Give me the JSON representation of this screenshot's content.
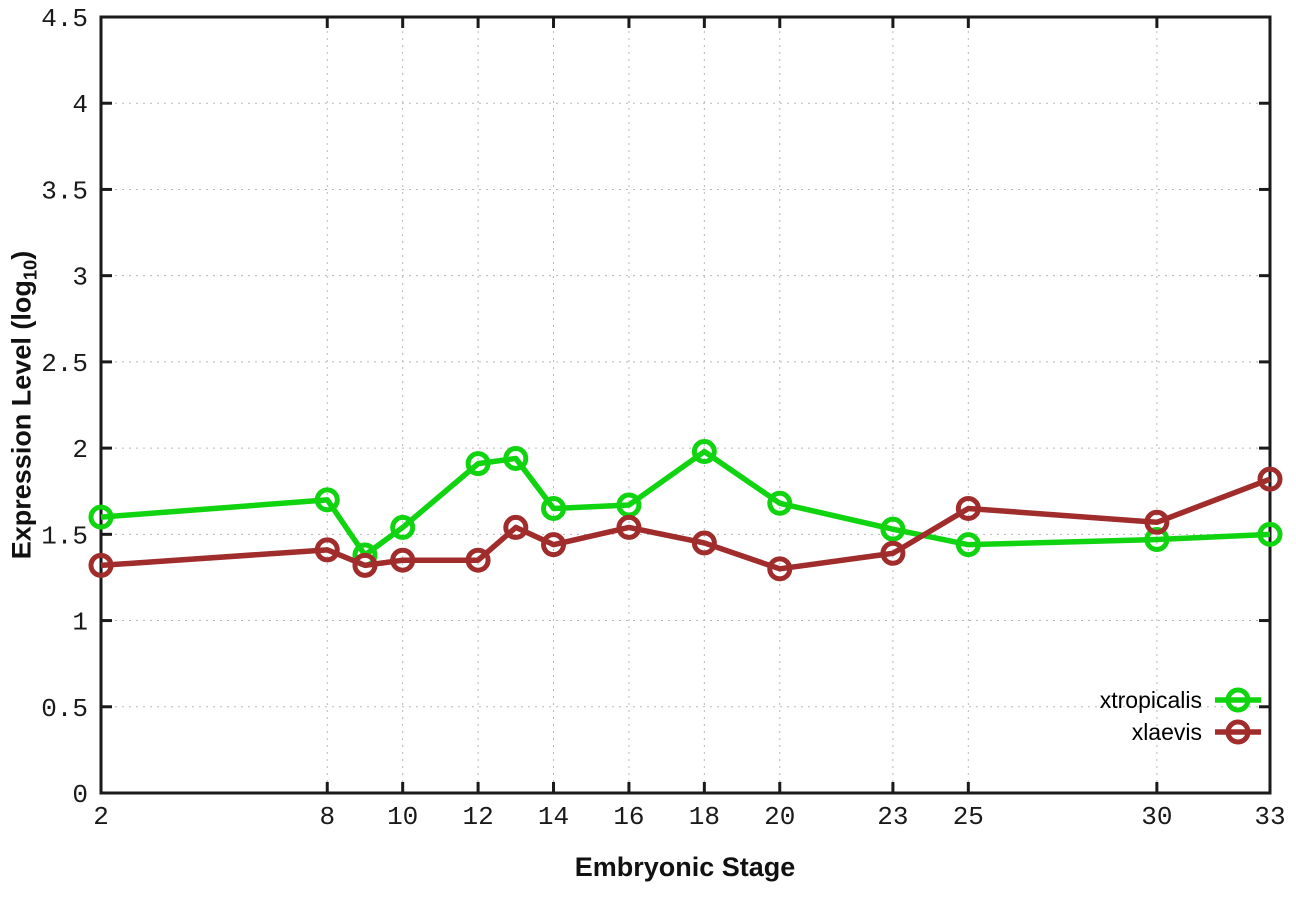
{
  "chart_data": {
    "type": "line",
    "xlabel": "Embryonic Stage",
    "ylabel": "Expression Level (log10)",
    "ylabel_parts": {
      "base": "Expression Level (log",
      "sub": "10",
      "close": ")"
    },
    "x": [
      2,
      8,
      9,
      10,
      12,
      13,
      14,
      16,
      18,
      20,
      23,
      25,
      30,
      33
    ],
    "series": [
      {
        "name": "xtropicalis",
        "color": "#10d410",
        "values": [
          1.6,
          1.7,
          1.38,
          1.54,
          1.91,
          1.94,
          1.65,
          1.67,
          1.98,
          1.68,
          1.53,
          1.44,
          1.47,
          1.5
        ]
      },
      {
        "name": "xlaevis",
        "color": "#a02c2c",
        "values": [
          1.32,
          1.41,
          1.32,
          1.35,
          1.35,
          1.54,
          1.44,
          1.54,
          1.45,
          1.3,
          1.39,
          1.65,
          1.57,
          1.82
        ]
      }
    ],
    "xlim": [
      2,
      33
    ],
    "ylim": [
      0,
      4.5
    ],
    "x_tick_values": [
      2,
      8,
      10,
      12,
      14,
      16,
      18,
      20,
      23,
      25,
      30,
      33
    ],
    "x_tick_labels": [
      "2",
      "8",
      "10",
      "12",
      "14",
      "16",
      "18",
      "20",
      "23",
      "25",
      "30",
      "33"
    ],
    "y_tick_values": [
      0,
      0.5,
      1,
      1.5,
      2,
      2.5,
      3,
      3.5,
      4,
      4.5
    ],
    "y_tick_labels": [
      "0",
      "0.5",
      "1",
      "1.5",
      "2",
      "2.5",
      "3",
      "3.5",
      "4",
      "4.5"
    ],
    "grid": true,
    "legend_position": "bottom-right",
    "colors": {
      "background": "#ffffff",
      "axis": "#1a1a1a",
      "grid": "#b8b8b8",
      "tick_text": "#1a1a1a"
    }
  }
}
